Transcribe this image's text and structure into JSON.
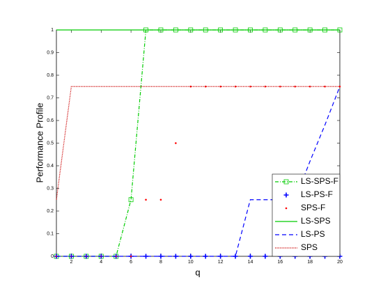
{
  "chart_data": {
    "type": "line",
    "xlabel": "q",
    "ylabel": "Performance Profile",
    "x": [
      1,
      2,
      3,
      4,
      5,
      6,
      7,
      8,
      9,
      10,
      11,
      12,
      13,
      14,
      15,
      16,
      17,
      18,
      19,
      20
    ],
    "xlim": [
      1,
      20
    ],
    "xticks": [
      2,
      4,
      6,
      8,
      10,
      12,
      14,
      16,
      18,
      20
    ],
    "ylim": [
      0,
      1
    ],
    "yticks": [
      0,
      0.1,
      0.2,
      0.3,
      0.4,
      0.5,
      0.6,
      0.7,
      0.8,
      0.9,
      1
    ],
    "legend": "lower right",
    "series": [
      {
        "name": "LS-SPS-F",
        "color": "#00cc00",
        "line_style": "dashdot",
        "marker": "square",
        "values": [
          0,
          0,
          0,
          0,
          0,
          0.25,
          1,
          1,
          1,
          1,
          1,
          1,
          1,
          1,
          1,
          1,
          1,
          1,
          1,
          1
        ]
      },
      {
        "name": "LS-PS-F",
        "color": "#0000ff",
        "line_style": "none",
        "marker": "plus",
        "values": [
          0,
          0,
          0,
          0,
          0,
          0,
          0,
          0,
          0,
          0,
          0,
          0,
          0,
          0,
          0,
          0,
          0,
          0,
          0,
          0
        ]
      },
      {
        "name": "SPS-F",
        "color": "#ff0000",
        "line_style": "none",
        "marker": "dot",
        "values": [
          0,
          0,
          0,
          0,
          0,
          0,
          0.25,
          0.25,
          0.5,
          0.75,
          0.75,
          0.75,
          0.75,
          0.75,
          0.75,
          0.75,
          0.75,
          0.75,
          0.75,
          0.75
        ]
      },
      {
        "name": "LS-SPS",
        "color": "#00cc00",
        "line_style": "solid",
        "marker": "none",
        "values": [
          1,
          1,
          1,
          1,
          1,
          1,
          1,
          1,
          1,
          1,
          1,
          1,
          1,
          1,
          1,
          1,
          1,
          1,
          1,
          1
        ]
      },
      {
        "name": "LS-PS",
        "color": "#0000ff",
        "line_style": "dashed",
        "marker": "none",
        "values": [
          0,
          0,
          0,
          0,
          0,
          0,
          0,
          0,
          0,
          0,
          0,
          0,
          0,
          0.25,
          0.25,
          0.25,
          0.25,
          0.42,
          0.58,
          0.75
        ]
      },
      {
        "name": "SPS",
        "color": "#cc0000",
        "line_style": "dotted",
        "marker": "none",
        "values": [
          0.25,
          0.75,
          0.75,
          0.75,
          0.75,
          0.75,
          0.75,
          0.75,
          0.75,
          0.75,
          0.75,
          0.75,
          0.75,
          0.75,
          0.75,
          0.75,
          0.75,
          0.75,
          0.75,
          0.75
        ]
      }
    ]
  }
}
